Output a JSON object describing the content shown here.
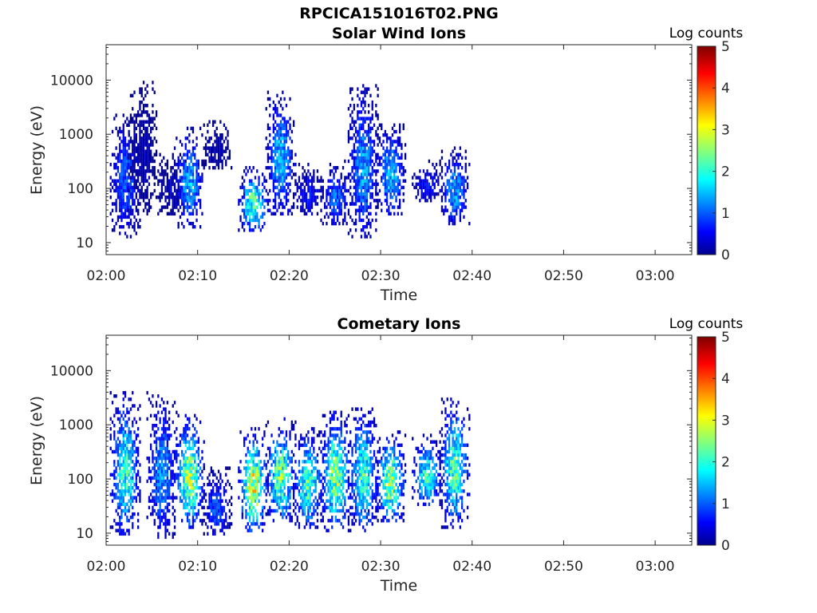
{
  "figure": {
    "title": "RPCICA151016T02.PNG"
  },
  "colors": {
    "colormap": "jet",
    "axis": "#262626",
    "background": "#ffffff"
  },
  "chart_data": [
    {
      "type": "heatmap",
      "title": "Solar Wind Ions",
      "xlabel": "Time",
      "ylabel": "Energy (eV)",
      "y_scale": "log",
      "xlim": [
        "02:00",
        "03:04"
      ],
      "ylim": [
        6,
        45000
      ],
      "x_ticks": [
        "02:00",
        "02:10",
        "02:20",
        "02:30",
        "02:40",
        "02:50",
        "03:00"
      ],
      "y_ticks": [
        "10",
        "100",
        "1000",
        "10000"
      ],
      "colorbar": {
        "label": "Log counts",
        "range": [
          0,
          5
        ],
        "ticks": [
          "0",
          "1",
          "2",
          "3",
          "4",
          "5"
        ]
      },
      "bursts": [
        {
          "t": "02:02",
          "emin": 12,
          "emax": 2300,
          "peak": 1.2
        },
        {
          "t": "02:04",
          "emin": 30,
          "emax": 8500,
          "peak": 0.3
        },
        {
          "t": "02:07",
          "emin": 28,
          "emax": 400,
          "peak": 0.3
        },
        {
          "t": "02:09",
          "emin": 18,
          "emax": 1300,
          "peak": 1.7
        },
        {
          "t": "02:12",
          "emin": 200,
          "emax": 1700,
          "peak": 0.3
        },
        {
          "t": "02:16",
          "emin": 15,
          "emax": 250,
          "peak": 2.6
        },
        {
          "t": "02:19",
          "emin": 30,
          "emax": 5600,
          "peak": 1.8
        },
        {
          "t": "02:22",
          "emin": 30,
          "emax": 270,
          "peak": 0.8
        },
        {
          "t": "02:25",
          "emin": 20,
          "emax": 300,
          "peak": 1.3
        },
        {
          "t": "02:28",
          "emin": 12,
          "emax": 7800,
          "peak": 1.6
        },
        {
          "t": "02:31",
          "emin": 30,
          "emax": 1500,
          "peak": 1.8
        },
        {
          "t": "02:35",
          "emin": 50,
          "emax": 350,
          "peak": 0.8
        },
        {
          "t": "02:38",
          "emin": 20,
          "emax": 560,
          "peak": 1.6
        }
      ]
    },
    {
      "type": "heatmap",
      "title": "Cometary Ions",
      "xlabel": "Time",
      "ylabel": "Energy (eV)",
      "y_scale": "log",
      "xlim": [
        "02:00",
        "03:04"
      ],
      "ylim": [
        6,
        45000
      ],
      "x_ticks": [
        "02:00",
        "02:10",
        "02:20",
        "02:30",
        "02:40",
        "02:50",
        "03:00"
      ],
      "y_ticks": [
        "10",
        "100",
        "1000",
        "10000"
      ],
      "colorbar": {
        "label": "Log counts",
        "range": [
          0,
          5
        ],
        "ticks": [
          "0",
          "1",
          "2",
          "3",
          "4",
          "5"
        ]
      },
      "bursts": [
        {
          "t": "02:02",
          "emin": 7,
          "emax": 3800,
          "peak": 2.4
        },
        {
          "t": "02:06",
          "emin": 7,
          "emax": 3800,
          "peak": 1.6
        },
        {
          "t": "02:09",
          "emin": 12,
          "emax": 1500,
          "peak": 3.1
        },
        {
          "t": "02:12",
          "emin": 8,
          "emax": 150,
          "peak": 1.2
        },
        {
          "t": "02:16",
          "emin": 10,
          "emax": 800,
          "peak": 3.4
        },
        {
          "t": "02:19",
          "emin": 15,
          "emax": 1200,
          "peak": 2.9
        },
        {
          "t": "02:22",
          "emin": 12,
          "emax": 800,
          "peak": 2.6
        },
        {
          "t": "02:25",
          "emin": 10,
          "emax": 1800,
          "peak": 3.0
        },
        {
          "t": "02:28",
          "emin": 10,
          "emax": 1900,
          "peak": 2.5
        },
        {
          "t": "02:31",
          "emin": 15,
          "emax": 700,
          "peak": 3.0
        },
        {
          "t": "02:35",
          "emin": 30,
          "emax": 600,
          "peak": 2.4
        },
        {
          "t": "02:38",
          "emin": 12,
          "emax": 3000,
          "peak": 2.6
        }
      ]
    }
  ]
}
